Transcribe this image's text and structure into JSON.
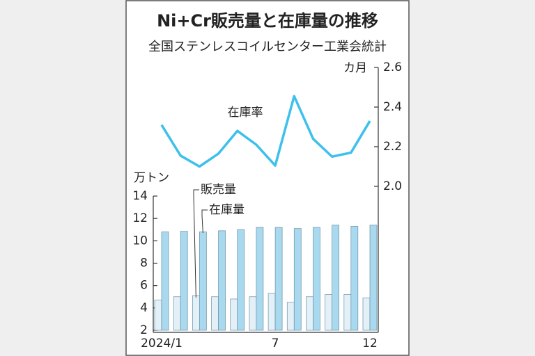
{
  "title": "Ni+Cr販売量と在庫量の推移",
  "subtitle": "全国ステンレスコイルセンター工業会統計",
  "chart_data": [
    {
      "type": "line",
      "y_unit": "カ月",
      "categories": [
        "2024/1",
        null,
        null,
        null,
        null,
        null,
        "7",
        null,
        null,
        null,
        null,
        "12"
      ],
      "series": [
        {
          "name": "在庫率",
          "color": "#3cc0ec",
          "values": [
            2.31,
            2.155,
            2.1,
            2.165,
            2.28,
            2.21,
            2.105,
            2.455,
            2.24,
            2.15,
            2.17,
            2.33
          ]
        }
      ],
      "ylim": [
        2.0,
        2.6
      ],
      "yticks": [
        {
          "value": 2.0,
          "label": "2.0"
        },
        {
          "value": 2.2,
          "label": "2.2"
        },
        {
          "value": 2.4,
          "label": "2.4"
        },
        {
          "value": 2.6,
          "label": "2.6"
        }
      ]
    },
    {
      "type": "bar",
      "y_unit": "万トン",
      "categories": [
        "2024/1",
        null,
        null,
        null,
        null,
        null,
        "7",
        null,
        null,
        null,
        null,
        "12"
      ],
      "series": [
        {
          "name": "販売量",
          "color": "#e3f0f7",
          "values": [
            4.7,
            5.0,
            5.1,
            5.0,
            4.8,
            5.0,
            5.3,
            4.5,
            5.0,
            5.2,
            5.2,
            4.9
          ]
        },
        {
          "name": "在庫量",
          "color": "#a9d9ef",
          "values": [
            10.8,
            10.85,
            10.8,
            10.9,
            11.0,
            11.2,
            11.2,
            11.1,
            11.2,
            11.4,
            11.3,
            11.4
          ]
        }
      ],
      "ylim": [
        2,
        14
      ],
      "yticks": [
        2,
        4,
        6,
        8,
        10,
        12,
        14
      ]
    }
  ]
}
